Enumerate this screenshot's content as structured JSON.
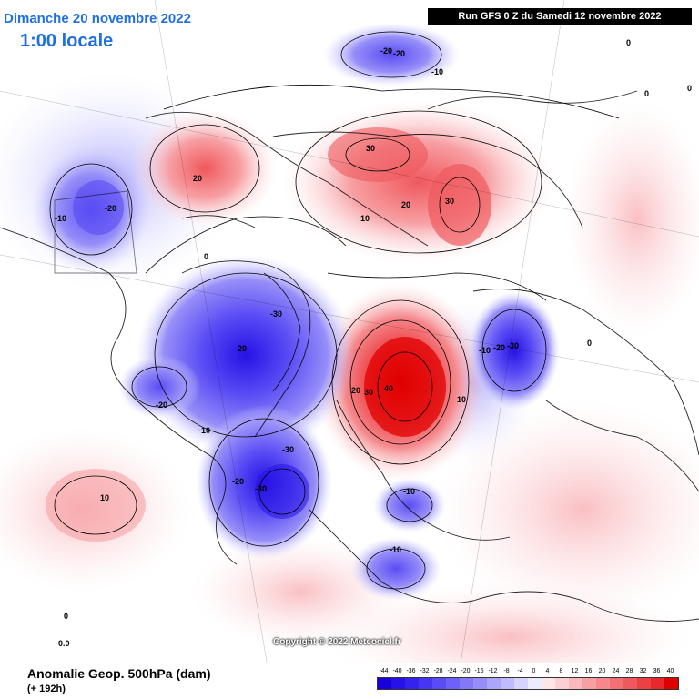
{
  "header": {
    "date": "Dimanche 20 novembre 2022",
    "time": "1:00 locale",
    "run": "Run GFS 0 Z du Samedi 12 novembre 2022"
  },
  "footer": {
    "variable": "Anomalie Geop. 500hPa (dam)",
    "lead": "(+ 192h)",
    "copyright": "Copyright © 2022 Meteociel.fr"
  },
  "legend": {
    "ticks": [
      "-44",
      "-40",
      "-36",
      "-32",
      "-28",
      "-24",
      "-20",
      "-16",
      "-12",
      "-8",
      "-4",
      "0",
      "4",
      "8",
      "12",
      "16",
      "20",
      "24",
      "28",
      "32",
      "36",
      "40"
    ],
    "colors": [
      "#1a00d8",
      "#2612e6",
      "#3422ee",
      "#4636f2",
      "#5a4cf4",
      "#6e62f6",
      "#8278f8",
      "#968ef8",
      "#aaa6fa",
      "#c0bcfb",
      "#d6d4fc",
      "#ececfe",
      "#fde6e8",
      "#fbd0d4",
      "#f9b8bc",
      "#f7a0a4",
      "#f5888c",
      "#f27074",
      "#ef585c",
      "#ec4044",
      "#e8282c",
      "#e00000"
    ]
  },
  "contour_labels": [
    {
      "text": "-20"
    },
    {
      "text": "-20"
    },
    {
      "text": "-10"
    },
    {
      "text": "-10"
    },
    {
      "text": "-20"
    },
    {
      "text": "-30"
    },
    {
      "text": "-20"
    },
    {
      "text": "-20"
    },
    {
      "text": "-10"
    },
    {
      "text": "-30"
    },
    {
      "text": "-30"
    },
    {
      "text": "-20"
    },
    {
      "text": "-10"
    },
    {
      "text": "-20"
    },
    {
      "text": "-30"
    },
    {
      "text": "-10"
    },
    {
      "text": "-10"
    },
    {
      "text": "20"
    },
    {
      "text": "30"
    },
    {
      "text": "30"
    },
    {
      "text": "20"
    },
    {
      "text": "10"
    },
    {
      "text": "0"
    },
    {
      "text": "20"
    },
    {
      "text": "30"
    },
    {
      "text": "40"
    },
    {
      "text": "10"
    },
    {
      "text": "10"
    },
    {
      "text": "0"
    },
    {
      "text": "0"
    },
    {
      "text": "0"
    },
    {
      "text": "0"
    },
    {
      "text": "0"
    },
    {
      "text": "0.0"
    }
  ]
}
